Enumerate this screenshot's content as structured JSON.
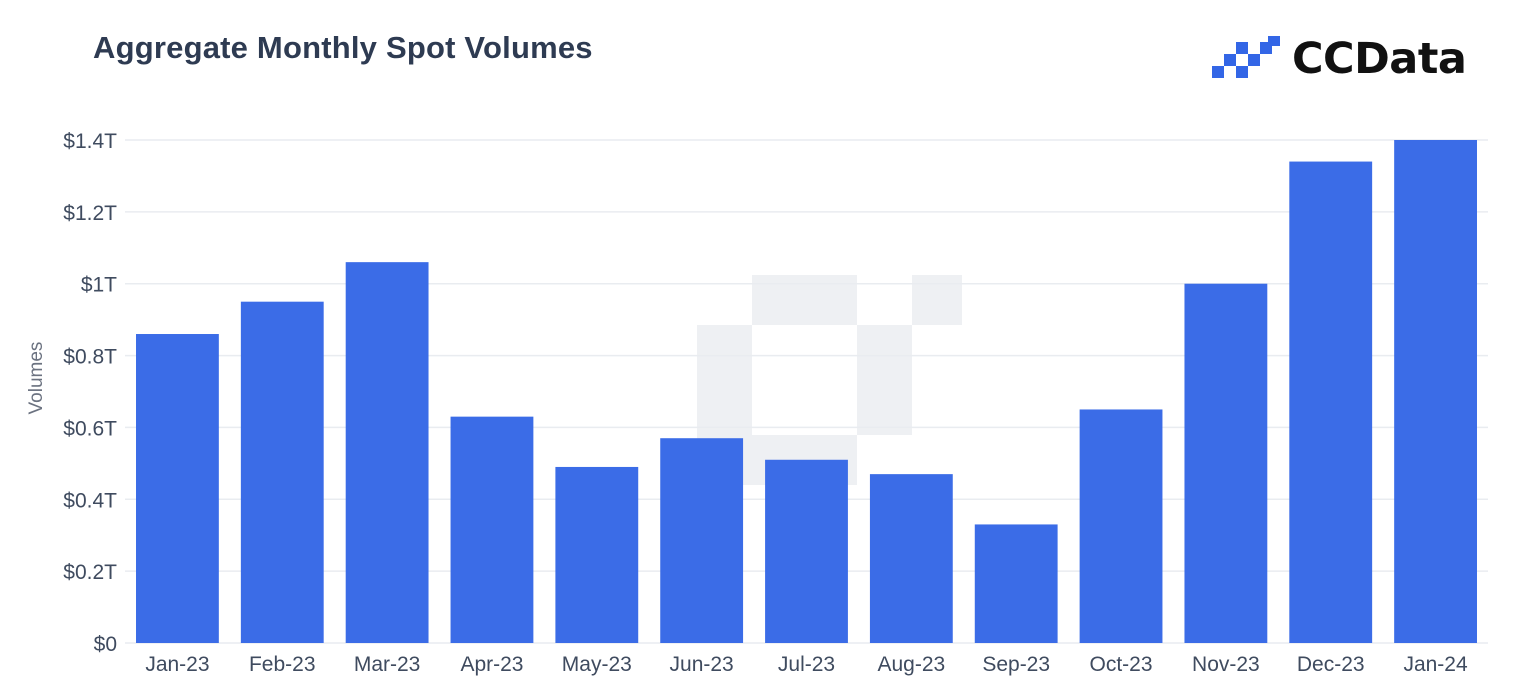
{
  "header": {
    "title": "Aggregate Monthly Spot Volumes",
    "brand": "CCData",
    "brand_logo_icon": "ccdata-logo-icon"
  },
  "colors": {
    "bar": "#3366e6",
    "grid": "#e9ecf0",
    "watermark": "#eef0f3"
  },
  "chart_data": {
    "type": "bar",
    "title": "Aggregate Monthly Spot Volumes",
    "ylabel": "Volumes",
    "xlabel": "",
    "categories": [
      "Jan-23",
      "Feb-23",
      "Mar-23",
      "Apr-23",
      "May-23",
      "Jun-23",
      "Jul-23",
      "Aug-23",
      "Sep-23",
      "Oct-23",
      "Nov-23",
      "Dec-23",
      "Jan-24"
    ],
    "values": [
      0.86,
      0.95,
      1.06,
      0.63,
      0.49,
      0.57,
      0.51,
      0.47,
      0.33,
      0.65,
      1.0,
      1.34,
      1.4
    ],
    "unit": "T",
    "ylim": [
      0,
      1.4
    ],
    "yticks": [
      0,
      0.2,
      0.4,
      0.6,
      0.8,
      1.0,
      1.2,
      1.4
    ],
    "ytick_labels": [
      "$0",
      "$0.2T",
      "$0.4T",
      "$0.6T",
      "$0.8T",
      "$1T",
      "$1.2T",
      "$1.4T"
    ],
    "grid": true,
    "legend": "none"
  }
}
